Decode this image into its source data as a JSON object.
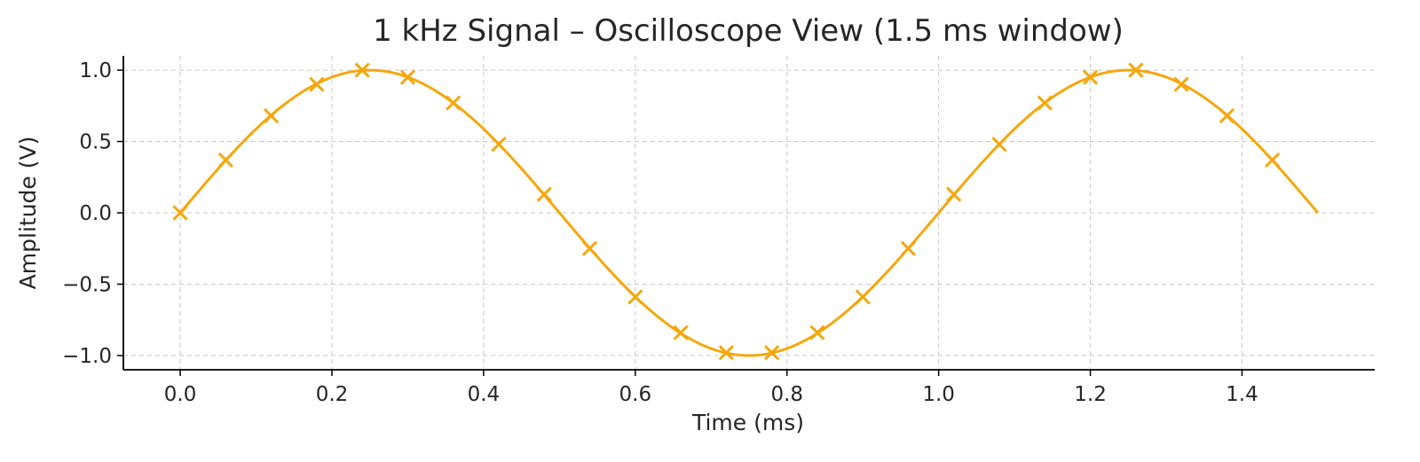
{
  "colors": {
    "series": "#f5a70d",
    "text": "#262626",
    "grid": "#c8c8c8",
    "background": "#ffffff"
  },
  "chart_data": {
    "type": "line",
    "title": "1 kHz Signal – Oscilloscope View (1.5 ms window)",
    "xlabel": "Time (ms)",
    "ylabel": "Amplitude (V)",
    "xlim": [
      -0.075,
      1.575
    ],
    "ylim": [
      -1.1,
      1.1
    ],
    "grid": true,
    "legend": "none",
    "x_ticks": [
      {
        "value": 0.0,
        "label": "0.0"
      },
      {
        "value": 0.2,
        "label": "0.2"
      },
      {
        "value": 0.4,
        "label": "0.4"
      },
      {
        "value": 0.6,
        "label": "0.6"
      },
      {
        "value": 0.8,
        "label": "0.8"
      },
      {
        "value": 1.0,
        "label": "1.0"
      },
      {
        "value": 1.2,
        "label": "1.2"
      },
      {
        "value": 1.4,
        "label": "1.4"
      }
    ],
    "y_ticks": [
      {
        "value": 1.0,
        "label": "1.0"
      },
      {
        "value": 0.5,
        "label": "0.5"
      },
      {
        "value": 0.0,
        "label": "0.0"
      },
      {
        "value": -0.5,
        "label": "−0.5"
      },
      {
        "value": -1.0,
        "label": "−1.0"
      }
    ],
    "series": [
      {
        "style": "line",
        "function": "sine",
        "frequency_khz": 1,
        "amplitude": 1.0,
        "x_range": [
          0,
          1.5
        ],
        "color": "#f5a70d"
      },
      {
        "style": "marker-x",
        "color": "#f5a70d",
        "x": [
          0.0,
          0.06,
          0.12,
          0.18,
          0.24,
          0.3,
          0.36,
          0.42,
          0.48,
          0.54,
          0.6,
          0.66,
          0.72,
          0.78,
          0.84,
          0.9,
          0.96,
          1.02,
          1.08,
          1.14,
          1.2,
          1.26,
          1.32,
          1.38,
          1.44
        ],
        "y": [
          0.0,
          0.37,
          0.68,
          0.9,
          1.0,
          0.95,
          0.77,
          0.48,
          0.13,
          -0.25,
          -0.59,
          -0.84,
          -0.98,
          -0.98,
          -0.84,
          -0.59,
          -0.25,
          0.13,
          0.48,
          0.77,
          0.95,
          1.0,
          0.9,
          0.68,
          0.37
        ]
      }
    ]
  }
}
